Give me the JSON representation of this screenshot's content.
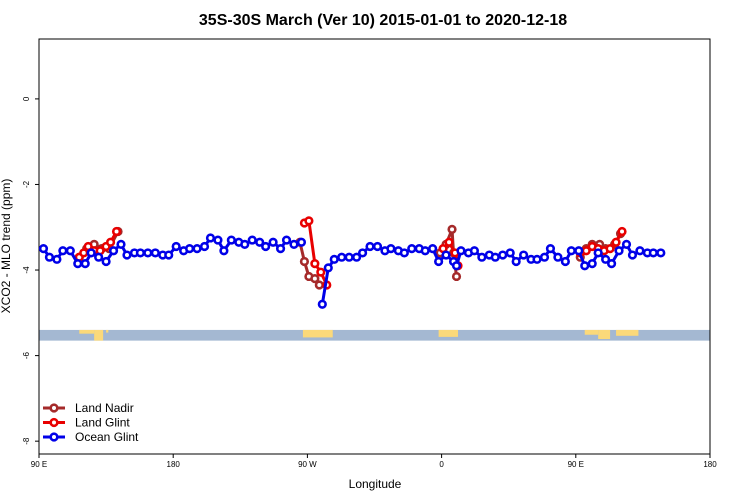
{
  "chart_data": {
    "type": "line",
    "title": "35S-30S March (Ver 10)   2015-01-01 to 2020-12-18",
    "xlabel": "Longitude",
    "ylabel": "XCO2 - MLO trend (ppm)",
    "xlim": [
      90,
      540
    ],
    "ylim": [
      -8.3,
      1.4
    ],
    "x_ticks": [
      {
        "value": 90,
        "label": "90 E"
      },
      {
        "value": 180,
        "label": "180"
      },
      {
        "value": 270,
        "label": "90 W"
      },
      {
        "value": 360,
        "label": "0"
      },
      {
        "value": 450,
        "label": "90 E"
      },
      {
        "value": 540,
        "label": "180"
      }
    ],
    "y_ticks": [
      {
        "value": 0,
        "label": "0"
      },
      {
        "value": -2,
        "label": "-2"
      },
      {
        "value": -4,
        "label": "-4"
      },
      {
        "value": -6,
        "label": "-6"
      },
      {
        "value": -8,
        "label": "-8"
      }
    ],
    "legend_position": "bottom-left",
    "land_strip": {
      "y_range": [
        -5.65,
        -5.4
      ],
      "ocean_color": "#a4b8d2",
      "land_color": "#fbd97a",
      "land_segments": [
        [
          117,
          127,
          0.35
        ],
        [
          127,
          133,
          1.0
        ],
        [
          135,
          136.5,
          0.25
        ],
        [
          267,
          287,
          0.7
        ],
        [
          358,
          371,
          0.65
        ],
        [
          456,
          465,
          0.45
        ],
        [
          465,
          473,
          0.85
        ],
        [
          477,
          492,
          0.55
        ]
      ]
    },
    "series": [
      {
        "name": "Land Nadir",
        "color": "#a52a2a",
        "segments": [
          [
            [
              117,
              -3.7
            ],
            [
              122,
              -3.5
            ],
            [
              127,
              -3.4
            ],
            [
              132,
              -3.5
            ],
            [
              137,
              -3.5
            ],
            [
              143,
              -3.1
            ]
          ],
          [
            [
              265,
              -3.35
            ],
            [
              268,
              -3.8
            ],
            [
              271,
              -4.15
            ],
            [
              275,
              -4.2
            ],
            [
              278,
              -4.35
            ]
          ],
          [
            [
              359,
              -3.6
            ],
            [
              363,
              -3.4
            ],
            [
              367,
              -3.05
            ],
            [
              368,
              -3.6
            ],
            [
              370,
              -4.15
            ]
          ],
          [
            [
              453,
              -3.7
            ],
            [
              457,
              -3.5
            ],
            [
              461,
              -3.4
            ],
            [
              466,
              -3.4
            ],
            [
              470,
              -3.5
            ],
            [
              476,
              -3.4
            ],
            [
              480,
              -3.15
            ]
          ]
        ]
      },
      {
        "name": "Land Glint",
        "color": "#e80000",
        "segments": [
          [
            [
              117,
              -3.7
            ],
            [
              120,
              -3.6
            ],
            [
              123,
              -3.45
            ],
            [
              127,
              -3.55
            ],
            [
              131,
              -3.55
            ],
            [
              135,
              -3.45
            ],
            [
              138,
              -3.35
            ],
            [
              142,
              -3.1
            ]
          ],
          [
            [
              268,
              -2.9
            ],
            [
              271,
              -2.85
            ],
            [
              275,
              -3.85
            ],
            [
              279,
              -4.05
            ],
            [
              283,
              -4.35
            ]
          ],
          [
            [
              361,
              -3.5
            ],
            [
              365,
              -3.35
            ],
            [
              369,
              -3.6
            ],
            [
              371,
              -3.9
            ]
          ],
          [
            [
              453,
              -3.6
            ],
            [
              457,
              -3.55
            ],
            [
              461,
              -3.45
            ],
            [
              465,
              -3.5
            ],
            [
              469,
              -3.55
            ],
            [
              473,
              -3.5
            ],
            [
              477,
              -3.35
            ],
            [
              481,
              -3.1
            ]
          ]
        ]
      },
      {
        "name": "Ocean Glint",
        "color": "#0000e8",
        "segments": [
          [
            [
              93,
              -3.5
            ],
            [
              97,
              -3.7
            ],
            [
              102,
              -3.75
            ],
            [
              106,
              -3.55
            ],
            [
              111,
              -3.55
            ],
            [
              116,
              -3.85
            ],
            [
              121,
              -3.85
            ],
            [
              125,
              -3.6
            ],
            [
              130,
              -3.7
            ],
            [
              135,
              -3.8
            ],
            [
              140,
              -3.55
            ],
            [
              145,
              -3.4
            ],
            [
              149,
              -3.65
            ],
            [
              154,
              -3.6
            ],
            [
              158,
              -3.6
            ],
            [
              163,
              -3.6
            ],
            [
              168,
              -3.6
            ],
            [
              173,
              -3.65
            ],
            [
              177,
              -3.65
            ],
            [
              182,
              -3.45
            ],
            [
              187,
              -3.55
            ],
            [
              191,
              -3.5
            ],
            [
              196,
              -3.5
            ],
            [
              201,
              -3.45
            ],
            [
              205,
              -3.25
            ],
            [
              210,
              -3.3
            ],
            [
              214,
              -3.55
            ],
            [
              219,
              -3.3
            ],
            [
              224,
              -3.35
            ],
            [
              228,
              -3.4
            ],
            [
              233,
              -3.3
            ],
            [
              238,
              -3.35
            ],
            [
              242,
              -3.45
            ],
            [
              247,
              -3.35
            ],
            [
              252,
              -3.5
            ],
            [
              256,
              -3.3
            ],
            [
              261,
              -3.4
            ],
            [
              266,
              -3.35
            ]
          ],
          [
            [
              280,
              -4.8
            ],
            [
              284,
              -3.95
            ],
            [
              288,
              -3.75
            ],
            [
              293,
              -3.7
            ],
            [
              298,
              -3.7
            ],
            [
              303,
              -3.7
            ],
            [
              307,
              -3.6
            ],
            [
              312,
              -3.45
            ],
            [
              317,
              -3.45
            ],
            [
              322,
              -3.55
            ],
            [
              326,
              -3.5
            ],
            [
              331,
              -3.55
            ],
            [
              335,
              -3.6
            ],
            [
              340,
              -3.5
            ],
            [
              345,
              -3.5
            ],
            [
              349,
              -3.55
            ],
            [
              354,
              -3.5
            ],
            [
              358,
              -3.8
            ],
            [
              363,
              -3.65
            ],
            [
              368,
              -3.8
            ],
            [
              370,
              -3.9
            ],
            [
              373,
              -3.55
            ],
            [
              378,
              -3.6
            ],
            [
              382,
              -3.55
            ],
            [
              387,
              -3.7
            ],
            [
              392,
              -3.65
            ],
            [
              396,
              -3.7
            ],
            [
              401,
              -3.65
            ],
            [
              406,
              -3.6
            ],
            [
              410,
              -3.8
            ],
            [
              415,
              -3.65
            ],
            [
              420,
              -3.75
            ],
            [
              424,
              -3.75
            ],
            [
              429,
              -3.7
            ],
            [
              433,
              -3.5
            ],
            [
              438,
              -3.7
            ],
            [
              443,
              -3.8
            ],
            [
              447,
              -3.55
            ],
            [
              452,
              -3.55
            ],
            [
              456,
              -3.9
            ],
            [
              461,
              -3.85
            ],
            [
              465,
              -3.6
            ],
            [
              470,
              -3.75
            ],
            [
              474,
              -3.85
            ],
            [
              479,
              -3.55
            ],
            [
              484,
              -3.4
            ],
            [
              488,
              -3.65
            ],
            [
              493,
              -3.55
            ],
            [
              498,
              -3.6
            ],
            [
              502,
              -3.6
            ],
            [
              507,
              -3.6
            ]
          ]
        ]
      }
    ]
  }
}
